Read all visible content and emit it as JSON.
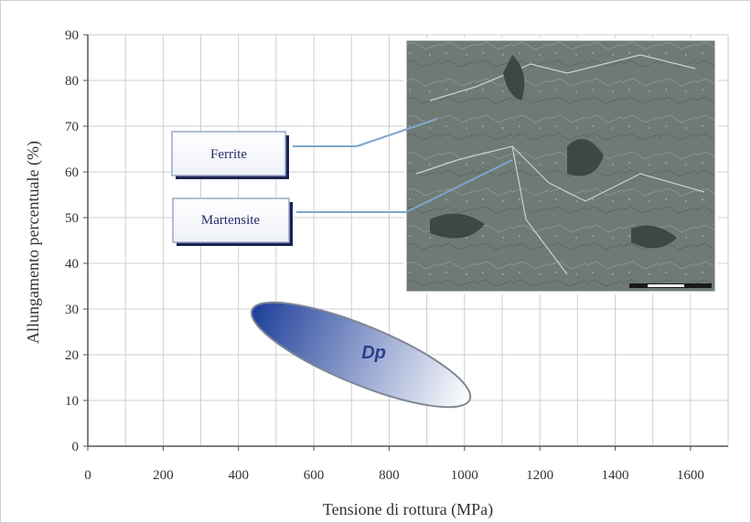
{
  "chart_data": {
    "type": "scatter",
    "title": "",
    "xlabel": "Tensione di rottura (MPa)",
    "ylabel": "Allungamento percentuale (%)",
    "xlim": [
      0,
      1700
    ],
    "ylim": [
      0,
      90
    ],
    "x_ticks": [
      0,
      200,
      400,
      600,
      800,
      1000,
      1200,
      1400,
      1600
    ],
    "y_ticks": [
      0,
      10,
      20,
      30,
      40,
      50,
      60,
      70,
      80,
      90
    ],
    "grid": true,
    "regions": [
      {
        "label": "Dp",
        "shape": "ellipse",
        "x_range": [
          430,
          1020
        ],
        "y_range": [
          10,
          30
        ],
        "color_start": "#1e3f9a",
        "color_end": "#ffffff"
      }
    ],
    "callouts": [
      {
        "label": "Ferrite"
      },
      {
        "label": "Martensite"
      }
    ],
    "inset": {
      "description_icon": "micrograph-image"
    },
    "colors": {
      "grid": "#cfcfcf",
      "axis": "#555555",
      "callout_border": "#9aa7c8",
      "callout_shadow": "#1a2450",
      "leader": "#7ea6cc"
    }
  }
}
